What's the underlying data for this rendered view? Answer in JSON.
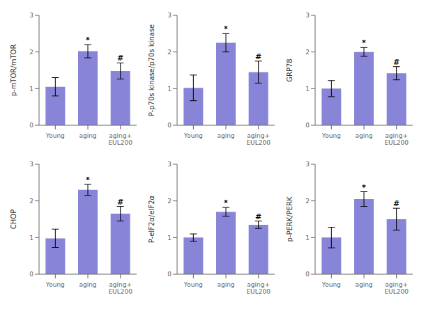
{
  "chart_data": [
    {
      "type": "bar",
      "ylabel": "p-mTOR/mTOR",
      "categories": [
        "Young",
        "aging",
        "aging+\nEUL200"
      ],
      "values": [
        1.05,
        2.02,
        1.48
      ],
      "errors": [
        0.25,
        0.18,
        0.22
      ],
      "ylim": [
        0,
        3
      ],
      "yticks": [
        0,
        1,
        2,
        3
      ],
      "annotations": [
        null,
        "*",
        "#"
      ]
    },
    {
      "type": "bar",
      "ylabel": "P-p70s kinase/p70s kinase",
      "categories": [
        "Young",
        "aging",
        "aging+\nEUL200"
      ],
      "values": [
        1.02,
        2.25,
        1.45
      ],
      "errors": [
        0.35,
        0.25,
        0.3
      ],
      "ylim": [
        0,
        3
      ],
      "yticks": [
        0,
        1,
        2,
        3
      ],
      "annotations": [
        null,
        "*",
        "#"
      ]
    },
    {
      "type": "bar",
      "ylabel": "GRP78",
      "categories": [
        "Young",
        "aging",
        "aging+\nEUL200"
      ],
      "values": [
        1.0,
        2.0,
        1.42
      ],
      "errors": [
        0.22,
        0.12,
        0.18
      ],
      "ylim": [
        0,
        3
      ],
      "yticks": [
        0,
        1,
        2,
        3
      ],
      "annotations": [
        null,
        "*",
        "#"
      ]
    },
    {
      "type": "bar",
      "ylabel": "CHOP",
      "categories": [
        "Young",
        "aging",
        "aging+\nEUL200"
      ],
      "values": [
        0.98,
        2.3,
        1.65
      ],
      "errors": [
        0.25,
        0.15,
        0.2
      ],
      "ylim": [
        0,
        3
      ],
      "yticks": [
        0,
        1,
        2,
        3
      ],
      "annotations": [
        null,
        "*",
        "#"
      ]
    },
    {
      "type": "bar",
      "ylabel": "P-eIF2α/eIF2α",
      "categories": [
        "Young",
        "aging",
        "aging+\nEUL200"
      ],
      "values": [
        1.0,
        1.7,
        1.35
      ],
      "errors": [
        0.1,
        0.12,
        0.1
      ],
      "ylim": [
        0,
        3
      ],
      "yticks": [
        0,
        1,
        2,
        3
      ],
      "annotations": [
        null,
        "*",
        "#"
      ]
    },
    {
      "type": "bar",
      "ylabel": "p-PERK/PERK",
      "categories": [
        "Young",
        "aging",
        "aging+\nEUL200"
      ],
      "values": [
        1.0,
        2.05,
        1.5
      ],
      "errors": [
        0.28,
        0.2,
        0.3
      ],
      "ylim": [
        0,
        3
      ],
      "yticks": [
        0,
        1,
        2,
        3
      ],
      "annotations": [
        null,
        "*",
        "#"
      ]
    }
  ]
}
